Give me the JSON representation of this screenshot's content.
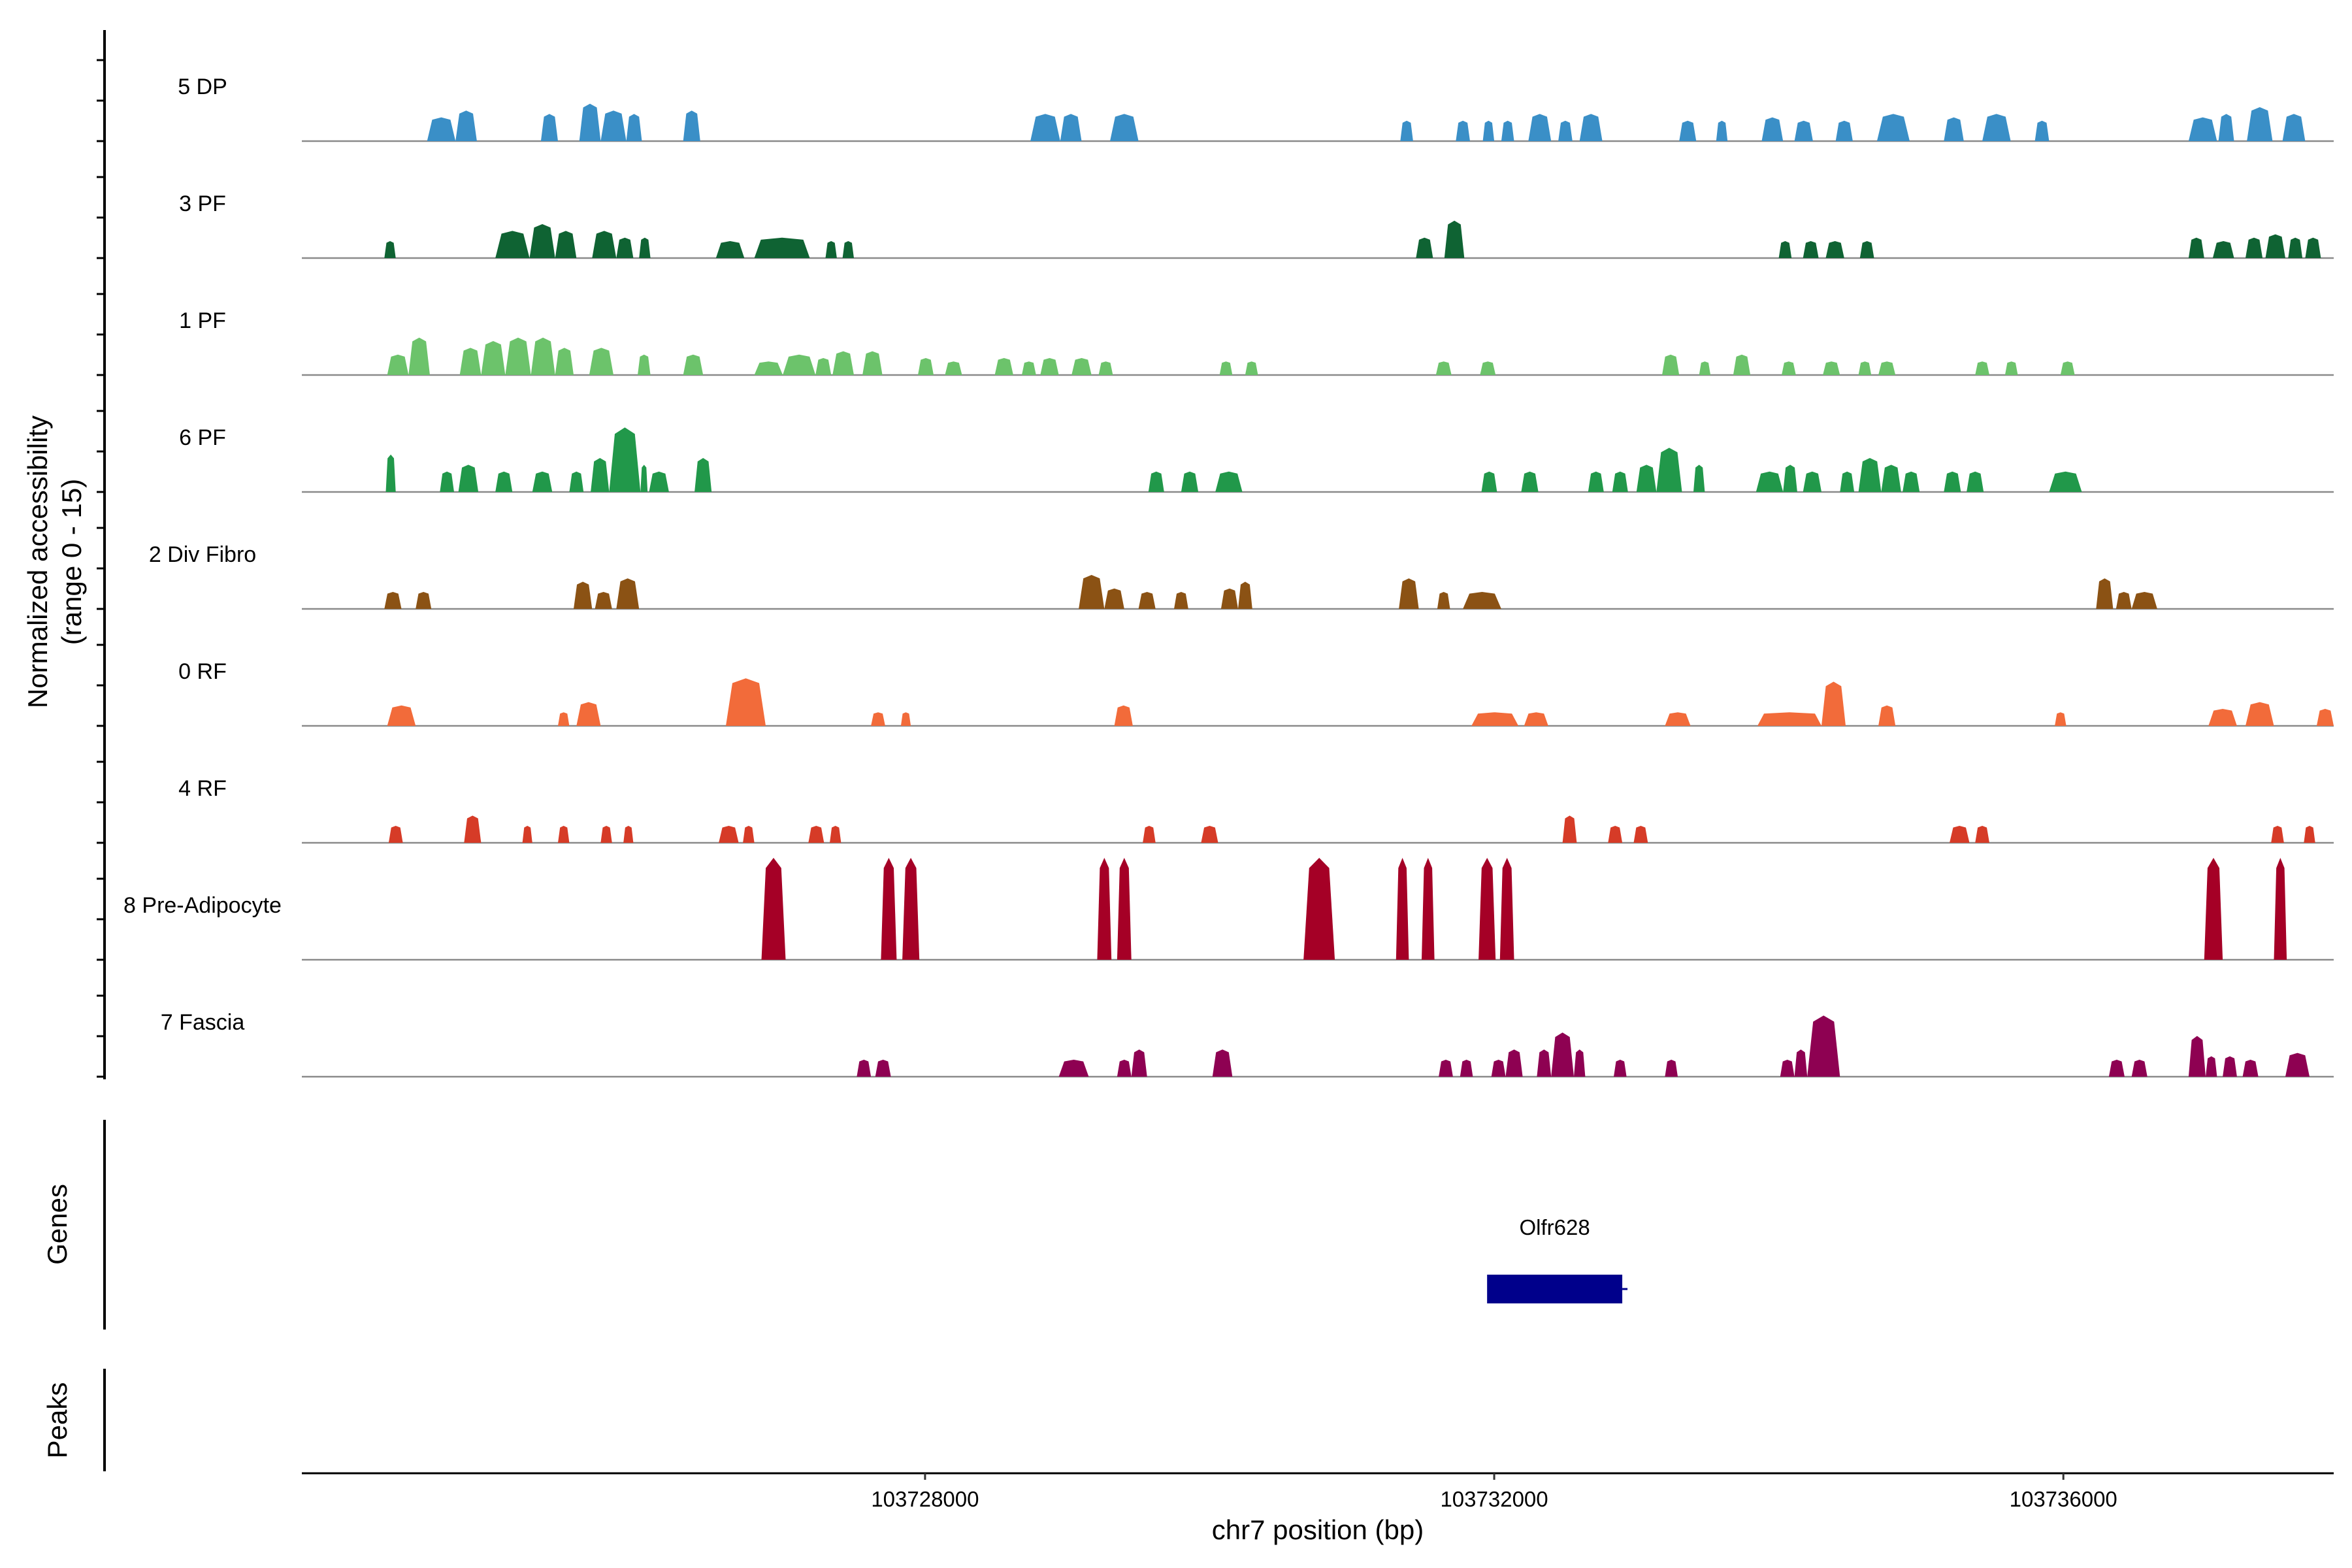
{
  "chart_data": {
    "type": "area",
    "title": "",
    "xlabel": "chr7 position (bp)",
    "ylabel": "Normalized accessibility",
    "ylabel_sub": "(range 0 - 15)",
    "ylim": [
      0,
      15
    ],
    "xlim": [
      103723620,
      103737900
    ],
    "x_ticks": [
      {
        "value": 103728000,
        "label": "103728000"
      },
      {
        "value": 103732000,
        "label": "103732000"
      },
      {
        "value": 103736000,
        "label": "103736000"
      }
    ],
    "tracks": [
      {
        "name": "5 DP",
        "color": "#3A8FC7",
        "peaks": [
          [
            103724500,
            103724700,
            3.5
          ],
          [
            103724700,
            103724850,
            4.5
          ],
          [
            103725300,
            103725420,
            4
          ],
          [
            103725570,
            103725720,
            5.5
          ],
          [
            103725720,
            103725900,
            4.5
          ],
          [
            103725900,
            103726010,
            4
          ],
          [
            103726300,
            103726420,
            4.5
          ],
          [
            103728740,
            103728950,
            4
          ],
          [
            103728950,
            103729100,
            4
          ],
          [
            103729300,
            103729500,
            4
          ],
          [
            103731340,
            103731430,
            3
          ],
          [
            103731730,
            103731830,
            3
          ],
          [
            103731920,
            103732000,
            3
          ],
          [
            103732050,
            103732140,
            3
          ],
          [
            103732240,
            103732400,
            4
          ],
          [
            103732450,
            103732550,
            3
          ],
          [
            103732600,
            103732760,
            4
          ],
          [
            103733300,
            103733420,
            3
          ],
          [
            103733560,
            103733640,
            3
          ],
          [
            103733880,
            103734030,
            3.5
          ],
          [
            103734110,
            103734240,
            3
          ],
          [
            103734400,
            103734520,
            3
          ],
          [
            103734690,
            103734920,
            4
          ],
          [
            103735160,
            103735300,
            3.5
          ],
          [
            103735430,
            103735630,
            4
          ],
          [
            103735800,
            103735900,
            3
          ],
          [
            103736880,
            103737080,
            3.5
          ],
          [
            103737090,
            103737200,
            4
          ],
          [
            103737290,
            103737470,
            5
          ],
          [
            103737540,
            103737700,
            4
          ]
        ]
      },
      {
        "name": "3 PF",
        "color": "#0F6333",
        "peaks": [
          [
            103724200,
            103724280,
            2.5
          ],
          [
            103724980,
            103725220,
            4
          ],
          [
            103725220,
            103725400,
            5
          ],
          [
            103725400,
            103725550,
            4
          ],
          [
            103725660,
            103725830,
            4
          ],
          [
            103725830,
            103725950,
            3
          ],
          [
            103725990,
            103726070,
            3
          ],
          [
            103726530,
            103726730,
            2.5
          ],
          [
            103726800,
            103727190,
            3
          ],
          [
            103727300,
            103727380,
            2.5
          ],
          [
            103727420,
            103727500,
            2.5
          ],
          [
            103731450,
            103731570,
            3
          ],
          [
            103731650,
            103731790,
            5.5
          ],
          [
            103734000,
            103734090,
            2.5
          ],
          [
            103734170,
            103734280,
            2.5
          ],
          [
            103734330,
            103734460,
            2.5
          ],
          [
            103734570,
            103734670,
            2.5
          ],
          [
            103736880,
            103736990,
            3
          ],
          [
            103737050,
            103737200,
            2.5
          ],
          [
            103737280,
            103737400,
            3
          ],
          [
            103737420,
            103737560,
            3.5
          ],
          [
            103737580,
            103737680,
            3
          ],
          [
            103737700,
            103737810,
            3
          ]
        ]
      },
      {
        "name": "1 PF",
        "color": "#6CC36B",
        "peaks": [
          [
            103724220,
            103724370,
            3
          ],
          [
            103724370,
            103724520,
            5.5
          ],
          [
            103724730,
            103724880,
            4
          ],
          [
            103724880,
            103725050,
            5
          ],
          [
            103725050,
            103725230,
            5.5
          ],
          [
            103725230,
            103725400,
            5.5
          ],
          [
            103725400,
            103725530,
            4
          ],
          [
            103725640,
            103725810,
            4
          ],
          [
            103725980,
            103726070,
            3
          ],
          [
            103726300,
            103726440,
            3
          ],
          [
            103726800,
            103727000,
            2
          ],
          [
            103727000,
            103727230,
            3
          ],
          [
            103727230,
            103727340,
            2.5
          ],
          [
            103727350,
            103727500,
            3.5
          ],
          [
            103727560,
            103727700,
            3.5
          ],
          [
            103727950,
            103728060,
            2.5
          ],
          [
            103728140,
            103728260,
            2
          ],
          [
            103728490,
            103728620,
            2.5
          ],
          [
            103728680,
            103728780,
            2
          ],
          [
            103728810,
            103728940,
            2.5
          ],
          [
            103729030,
            103729170,
            2.5
          ],
          [
            103729220,
            103729320,
            2
          ],
          [
            103730070,
            103730160,
            2
          ],
          [
            103730250,
            103730340,
            2
          ],
          [
            103731590,
            103731700,
            2
          ],
          [
            103731900,
            103732010,
            2
          ],
          [
            103733180,
            103733300,
            3
          ],
          [
            103733440,
            103733520,
            2
          ],
          [
            103733680,
            103733800,
            3
          ],
          [
            103734020,
            103734120,
            2
          ],
          [
            103734310,
            103734430,
            2
          ],
          [
            103734560,
            103734650,
            2
          ],
          [
            103734700,
            103734820,
            2
          ],
          [
            103735380,
            103735480,
            2
          ],
          [
            103735590,
            103735680,
            2
          ],
          [
            103735980,
            103736080,
            2
          ]
        ]
      },
      {
        "name": "6 PF",
        "color": "#21984A",
        "peaks": [
          [
            103724210,
            103724280,
            5.5
          ],
          [
            103724590,
            103724690,
            3
          ],
          [
            103724720,
            103724860,
            4
          ],
          [
            103724980,
            103725100,
            3
          ],
          [
            103725240,
            103725380,
            3
          ],
          [
            103725500,
            103725600,
            3
          ],
          [
            103725650,
            103725780,
            5
          ],
          [
            103725780,
            103726000,
            9.5
          ],
          [
            103726000,
            103726050,
            4
          ],
          [
            103726060,
            103726200,
            3
          ],
          [
            103726380,
            103726500,
            5
          ],
          [
            103729570,
            103729680,
            3
          ],
          [
            103729800,
            103729920,
            3
          ],
          [
            103730040,
            103730230,
            3
          ],
          [
            103731910,
            103732020,
            3
          ],
          [
            103732190,
            103732310,
            3
          ],
          [
            103732660,
            103732770,
            3
          ],
          [
            103732830,
            103732940,
            3
          ],
          [
            103733000,
            103733140,
            4
          ],
          [
            103733140,
            103733320,
            6.5
          ],
          [
            103733400,
            103733480,
            4
          ],
          [
            103733840,
            103734030,
            3
          ],
          [
            103734030,
            103734130,
            4
          ],
          [
            103734170,
            103734300,
            3
          ],
          [
            103734430,
            103734530,
            3
          ],
          [
            103734560,
            103734720,
            5
          ],
          [
            103734720,
            103734860,
            4
          ],
          [
            103734870,
            103734990,
            3
          ],
          [
            103735160,
            103735280,
            3
          ],
          [
            103735320,
            103735440,
            3
          ],
          [
            103735900,
            103736130,
            3
          ]
        ]
      },
      {
        "name": "2 Div Fibro",
        "color": "#8B5214",
        "peaks": [
          [
            103724200,
            103724320,
            2.5
          ],
          [
            103724420,
            103724530,
            2.5
          ],
          [
            103725530,
            103725660,
            4
          ],
          [
            103725680,
            103725800,
            2.5
          ],
          [
            103725830,
            103725990,
            4.5
          ],
          [
            103729080,
            103729260,
            5
          ],
          [
            103729260,
            103729400,
            3
          ],
          [
            103729500,
            103729620,
            2.5
          ],
          [
            103729750,
            103729850,
            2.5
          ],
          [
            103730080,
            103730200,
            3
          ],
          [
            103730200,
            103730300,
            4
          ],
          [
            103731330,
            103731470,
            4.5
          ],
          [
            103731600,
            103731690,
            2.5
          ],
          [
            103731780,
            103732050,
            2.5
          ],
          [
            103736230,
            103736350,
            4.5
          ],
          [
            103736370,
            103736480,
            2.5
          ],
          [
            103736480,
            103736660,
            2.5
          ]
        ]
      },
      {
        "name": "0 RF",
        "color": "#F26B3A",
        "peaks": [
          [
            103724220,
            103724420,
            3
          ],
          [
            103725420,
            103725500,
            2
          ],
          [
            103725550,
            103725720,
            3.5
          ],
          [
            103726600,
            103726880,
            7
          ],
          [
            103727620,
            103727720,
            2
          ],
          [
            103727830,
            103727900,
            2
          ],
          [
            103729330,
            103729460,
            3
          ],
          [
            103731840,
            103732170,
            2
          ],
          [
            103732210,
            103732380,
            2
          ],
          [
            103733200,
            103733380,
            2
          ],
          [
            103733850,
            103734300,
            2
          ],
          [
            103734300,
            103734470,
            6.5
          ],
          [
            103734700,
            103734820,
            3
          ],
          [
            103735940,
            103736020,
            2
          ],
          [
            103737020,
            103737220,
            2.5
          ],
          [
            103737280,
            103737480,
            3.5
          ],
          [
            103737780,
            103737900,
            2.5
          ]
        ]
      },
      {
        "name": "4 RF",
        "color": "#D63B27",
        "peaks": [
          [
            103724230,
            103724330,
            2.5
          ],
          [
            103724760,
            103724880,
            4
          ],
          [
            103725170,
            103725240,
            2.5
          ],
          [
            103725420,
            103725500,
            2.5
          ],
          [
            103725720,
            103725800,
            2.5
          ],
          [
            103725880,
            103725950,
            2.5
          ],
          [
            103726550,
            103726690,
            2.5
          ],
          [
            103726720,
            103726800,
            2.5
          ],
          [
            103727180,
            103727290,
            2.5
          ],
          [
            103727330,
            103727410,
            2.5
          ],
          [
            103729530,
            103729620,
            2.5
          ],
          [
            103729940,
            103730060,
            2.5
          ],
          [
            103732480,
            103732580,
            4
          ],
          [
            103732800,
            103732900,
            2.5
          ],
          [
            103732980,
            103733080,
            2.5
          ],
          [
            103735200,
            103735340,
            2.5
          ],
          [
            103735380,
            103735480,
            2.5
          ],
          [
            103737460,
            103737550,
            2.5
          ],
          [
            103737690,
            103737770,
            2.5
          ]
        ]
      },
      {
        "name": "8 Pre-Adipocyte",
        "color": "#A50026",
        "peaks": [
          [
            103726850,
            103727020,
            15
          ],
          [
            103727690,
            103727800,
            15
          ],
          [
            103727840,
            103727960,
            15
          ],
          [
            103729210,
            103729310,
            15
          ],
          [
            103729350,
            103729450,
            15
          ],
          [
            103730660,
            103730880,
            15
          ],
          [
            103731310,
            103731400,
            15
          ],
          [
            103731490,
            103731580,
            15
          ],
          [
            103731890,
            103732010,
            15
          ],
          [
            103732040,
            103732140,
            15
          ],
          [
            103736990,
            103737120,
            15
          ],
          [
            103737480,
            103737570,
            15
          ]
        ]
      },
      {
        "name": "7 Fascia",
        "color": "#8E0152",
        "peaks": [
          [
            103727520,
            103727620,
            2.5
          ],
          [
            103727650,
            103727760,
            2.5
          ],
          [
            103728940,
            103729150,
            2.5
          ],
          [
            103729350,
            103729450,
            2.5
          ],
          [
            103729450,
            103729560,
            4
          ],
          [
            103730020,
            103730160,
            4
          ],
          [
            103731610,
            103731710,
            2.5
          ],
          [
            103731760,
            103731850,
            2.5
          ],
          [
            103731980,
            103732080,
            2.5
          ],
          [
            103732080,
            103732200,
            4
          ],
          [
            103732300,
            103732400,
            4
          ],
          [
            103732400,
            103732560,
            6.5
          ],
          [
            103732560,
            103732640,
            4
          ],
          [
            103732840,
            103732930,
            2.5
          ],
          [
            103733200,
            103733290,
            2.5
          ],
          [
            103734010,
            103734110,
            2.5
          ],
          [
            103734110,
            103734200,
            4
          ],
          [
            103734200,
            103734430,
            9
          ],
          [
            103736320,
            103736430,
            2.5
          ],
          [
            103736480,
            103736590,
            2.5
          ],
          [
            103736880,
            103737000,
            6
          ],
          [
            103737000,
            103737080,
            3
          ],
          [
            103737120,
            103737220,
            3
          ],
          [
            103737260,
            103737370,
            2.5
          ],
          [
            103737560,
            103737730,
            3.5
          ]
        ]
      }
    ],
    "genes_label": "Genes",
    "peaks_label": "Peaks",
    "genes": [
      {
        "name": "Olfr628",
        "start": 103731950,
        "end": 103732900,
        "color": "#00008B"
      }
    ]
  }
}
